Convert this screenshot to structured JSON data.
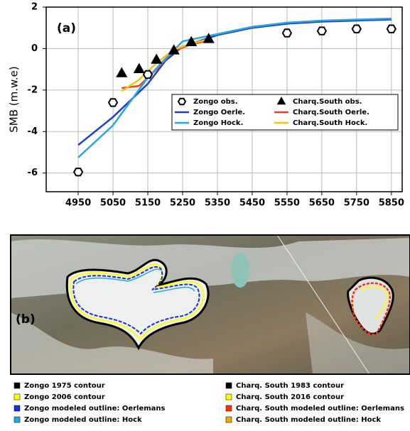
{
  "chart_data": {
    "type": "line",
    "panel_label": "(a)",
    "y_label": "SMB (m.w.e)",
    "xlim": [
      4858,
      5881
    ],
    "xticks": [
      4950,
      5050,
      5150,
      5250,
      5350,
      5450,
      5550,
      5650,
      5750,
      5850
    ],
    "ylim": [
      -6.9,
      2
    ],
    "yticks": [
      -6,
      -4,
      -2,
      0,
      2
    ],
    "grid": true,
    "series": [
      {
        "name": "Zongo obs.",
        "marker": "hexagon",
        "color": "#000000",
        "x": [
          4950,
          5050,
          5150,
          5550,
          5650,
          5750,
          5850
        ],
        "values": [
          -5.95,
          -2.6,
          -1.25,
          0.75,
          0.85,
          0.95,
          0.95
        ]
      },
      {
        "name": "Charq.South obs.",
        "marker": "triangle",
        "color": "#000000",
        "x": [
          5075,
          5125,
          5175,
          5225,
          5275,
          5325
        ],
        "values": [
          -1.2,
          -1.0,
          -0.55,
          -0.1,
          0.3,
          0.45
        ]
      },
      {
        "name": "Zongo Oerle.",
        "marker": "line",
        "color": "#1f3fd1",
        "x": [
          4950,
          5050,
          5150,
          5200,
          5250,
          5350,
          5450,
          5550,
          5650,
          5750,
          5850
        ],
        "values": [
          -4.65,
          -3.3,
          -1.7,
          -0.6,
          0.1,
          0.65,
          1.0,
          1.2,
          1.3,
          1.35,
          1.4
        ]
      },
      {
        "name": "Charq.South Oerle.",
        "marker": "line",
        "color": "#ee4422",
        "x": [
          5075,
          5125,
          5175,
          5225,
          5275,
          5325
        ],
        "values": [
          -1.9,
          -1.8,
          -1.0,
          -0.1,
          0.2,
          0.4
        ]
      },
      {
        "name": "Zongo Hock.",
        "marker": "line",
        "color": "#29a8e0",
        "x": [
          4950,
          5050,
          5150,
          5200,
          5250,
          5350,
          5450,
          5550,
          5650,
          5750,
          5850
        ],
        "values": [
          -5.25,
          -3.7,
          -1.4,
          -0.5,
          0.35,
          0.7,
          1.05,
          1.25,
          1.35,
          1.4,
          1.45
        ]
      },
      {
        "name": "Charq.South Hock.",
        "marker": "line",
        "color": "#f5c211",
        "x": [
          5075,
          5125,
          5175,
          5225,
          5275,
          5325
        ],
        "values": [
          -2.05,
          -1.5,
          -0.7,
          -0.05,
          0.25,
          0.45
        ]
      }
    ]
  },
  "map_panel": {
    "label": "(b)",
    "legend": [
      {
        "label": "Zongo 1975 contour",
        "color": "#000000"
      },
      {
        "label": "Zongo 2006 contour",
        "color": "#ffff00"
      },
      {
        "label": "Zongo modeled outline: Oerlemans",
        "color": "#1a2ee0"
      },
      {
        "label": "Zongo modeled outline: Hock",
        "color": "#29a8e0"
      },
      {
        "label": "Charq. South  1983 contour",
        "color": "#000000"
      },
      {
        "label": "Charq. South 2016 contour",
        "color": "#ffff00"
      },
      {
        "label": "Charq. South modeled outline: Oerlemans",
        "color": "#ff3300"
      },
      {
        "label": "Charq. South modeled outline: Hock",
        "color": "#f5a800"
      }
    ]
  }
}
